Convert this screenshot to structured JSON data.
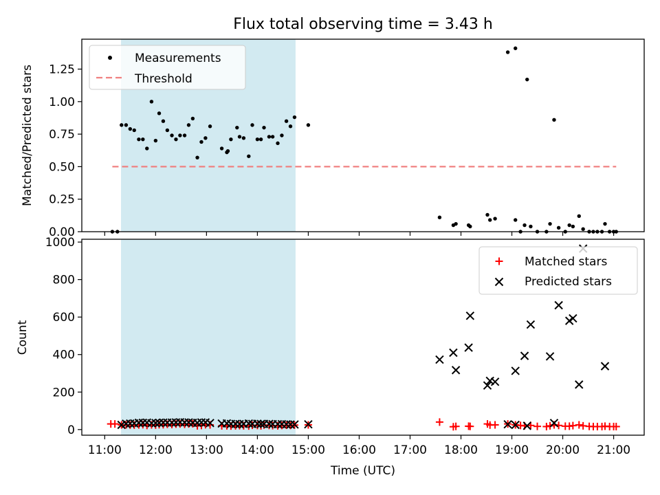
{
  "chart_data": {
    "type": "scatter",
    "title": "Flux total observing time = 3.43 h",
    "xlabel": "Time (UTC)",
    "x_unit": "hours UTC",
    "xlim": [
      10.55,
      21.6
    ],
    "x_ticks": [
      11,
      12,
      13,
      14,
      15,
      16,
      17,
      18,
      19,
      20,
      21
    ],
    "x_tick_labels": [
      "11:00",
      "12:00",
      "13:00",
      "14:00",
      "15:00",
      "16:00",
      "17:00",
      "18:00",
      "19:00",
      "20:00",
      "21:00"
    ],
    "observing_window": {
      "start": 11.32,
      "end": 14.75,
      "color": "#add8e6"
    },
    "colors": {
      "measurements": "#000000",
      "threshold": "#f08080",
      "matched": "#ff0000",
      "predicted": "#000000"
    },
    "top": {
      "ylabel": "Matched/Predicted stars",
      "ylim": [
        0,
        1.48
      ],
      "y_ticks": [
        0,
        0.25,
        0.5,
        0.75,
        1.0,
        1.25
      ],
      "y_tick_labels": [
        "0.00",
        "0.25",
        "0.50",
        "0.75",
        "1.00",
        "1.25"
      ],
      "legend": {
        "position": "upper-left",
        "measurements": "Measurements",
        "threshold": "Threshold"
      },
      "threshold": {
        "value": 0.5,
        "x_start": 11.15,
        "x_end": 21.05
      },
      "measurements": [
        [
          11.15,
          0.0
        ],
        [
          11.25,
          0.0
        ],
        [
          11.33,
          0.82
        ],
        [
          11.42,
          0.82
        ],
        [
          11.5,
          0.79
        ],
        [
          11.58,
          0.78
        ],
        [
          11.67,
          0.71
        ],
        [
          11.75,
          0.71
        ],
        [
          11.83,
          0.64
        ],
        [
          11.92,
          1.0
        ],
        [
          12.0,
          0.7
        ],
        [
          12.07,
          0.91
        ],
        [
          12.15,
          0.85
        ],
        [
          12.23,
          0.78
        ],
        [
          12.32,
          0.74
        ],
        [
          12.4,
          0.71
        ],
        [
          12.48,
          0.74
        ],
        [
          12.57,
          0.74
        ],
        [
          12.65,
          0.82
        ],
        [
          12.73,
          0.87
        ],
        [
          12.82,
          0.57
        ],
        [
          12.9,
          0.69
        ],
        [
          12.98,
          0.72
        ],
        [
          13.07,
          0.81
        ],
        [
          13.3,
          0.64
        ],
        [
          13.4,
          0.61
        ],
        [
          13.42,
          0.62
        ],
        [
          13.48,
          0.71
        ],
        [
          13.6,
          0.8
        ],
        [
          13.65,
          0.73
        ],
        [
          13.73,
          0.72
        ],
        [
          13.83,
          0.58
        ],
        [
          13.9,
          0.82
        ],
        [
          14.0,
          0.71
        ],
        [
          14.07,
          0.71
        ],
        [
          14.13,
          0.8
        ],
        [
          14.23,
          0.73
        ],
        [
          14.3,
          0.73
        ],
        [
          14.4,
          0.68
        ],
        [
          14.48,
          0.74
        ],
        [
          14.57,
          0.85
        ],
        [
          14.65,
          0.81
        ],
        [
          14.73,
          0.88
        ],
        [
          15.0,
          0.82
        ],
        [
          17.58,
          0.11
        ],
        [
          17.85,
          0.05
        ],
        [
          17.9,
          0.06
        ],
        [
          18.15,
          0.05
        ],
        [
          18.18,
          0.04
        ],
        [
          18.52,
          0.13
        ],
        [
          18.57,
          0.09
        ],
        [
          18.67,
          0.1
        ],
        [
          18.92,
          1.38
        ],
        [
          19.07,
          1.41
        ],
        [
          19.07,
          0.09
        ],
        [
          19.17,
          0.0
        ],
        [
          19.25,
          0.05
        ],
        [
          19.3,
          1.17
        ],
        [
          19.37,
          0.04
        ],
        [
          19.5,
          0.0
        ],
        [
          19.68,
          0.0
        ],
        [
          19.75,
          0.06
        ],
        [
          19.83,
          0.86
        ],
        [
          19.92,
          0.03
        ],
        [
          20.05,
          0.0
        ],
        [
          20.13,
          0.05
        ],
        [
          20.2,
          0.04
        ],
        [
          20.32,
          0.12
        ],
        [
          20.4,
          0.02
        ],
        [
          20.52,
          0.0
        ],
        [
          20.6,
          0.0
        ],
        [
          20.68,
          0.0
        ],
        [
          20.77,
          0.0
        ],
        [
          20.83,
          0.06
        ],
        [
          20.92,
          0.0
        ],
        [
          21.0,
          0.0
        ],
        [
          21.05,
          0.0
        ]
      ]
    },
    "bottom": {
      "ylabel": "Count",
      "ylim": [
        -30,
        1015
      ],
      "y_ticks": [
        0,
        200,
        400,
        600,
        800,
        1000
      ],
      "y_tick_labels": [
        "0",
        "200",
        "400",
        "600",
        "800",
        "1000"
      ],
      "legend": {
        "position": "upper-right",
        "matched": "Matched stars",
        "predicted": "Predicted stars"
      },
      "matched": [
        [
          11.12,
          30
        ],
        [
          11.2,
          30
        ],
        [
          11.33,
          25
        ],
        [
          11.42,
          25
        ],
        [
          11.5,
          24
        ],
        [
          11.58,
          24
        ],
        [
          11.67,
          25
        ],
        [
          11.75,
          26
        ],
        [
          11.83,
          22
        ],
        [
          11.92,
          25
        ],
        [
          12.0,
          24
        ],
        [
          12.07,
          26
        ],
        [
          12.15,
          26
        ],
        [
          12.23,
          28
        ],
        [
          12.32,
          27
        ],
        [
          12.4,
          29
        ],
        [
          12.48,
          30
        ],
        [
          12.57,
          28
        ],
        [
          12.65,
          30
        ],
        [
          12.73,
          31
        ],
        [
          12.82,
          20
        ],
        [
          12.9,
          22
        ],
        [
          12.98,
          26
        ],
        [
          13.07,
          25
        ],
        [
          13.3,
          20
        ],
        [
          13.4,
          20
        ],
        [
          13.48,
          19
        ],
        [
          13.57,
          20
        ],
        [
          13.65,
          21
        ],
        [
          13.73,
          20
        ],
        [
          13.83,
          19
        ],
        [
          13.9,
          23
        ],
        [
          14.0,
          22
        ],
        [
          14.07,
          20
        ],
        [
          14.13,
          24
        ],
        [
          14.23,
          22
        ],
        [
          14.3,
          21
        ],
        [
          14.4,
          20
        ],
        [
          14.48,
          22
        ],
        [
          14.57,
          23
        ],
        [
          14.65,
          22
        ],
        [
          14.73,
          24
        ],
        [
          15.0,
          25
        ],
        [
          17.58,
          40
        ],
        [
          17.85,
          15
        ],
        [
          17.9,
          17
        ],
        [
          18.15,
          18
        ],
        [
          18.18,
          17
        ],
        [
          18.52,
          30
        ],
        [
          18.57,
          24
        ],
        [
          18.67,
          25
        ],
        [
          18.92,
          30
        ],
        [
          19.07,
          25
        ],
        [
          19.17,
          22
        ],
        [
          19.25,
          20
        ],
        [
          19.37,
          22
        ],
        [
          19.5,
          17
        ],
        [
          19.68,
          16
        ],
        [
          19.75,
          20
        ],
        [
          19.83,
          25
        ],
        [
          19.92,
          22
        ],
        [
          20.05,
          18
        ],
        [
          20.13,
          18
        ],
        [
          20.2,
          21
        ],
        [
          20.32,
          25
        ],
        [
          20.4,
          20
        ],
        [
          20.52,
          17
        ],
        [
          20.6,
          16
        ],
        [
          20.68,
          16
        ],
        [
          20.77,
          16
        ],
        [
          20.83,
          18
        ],
        [
          20.92,
          16
        ],
        [
          21.0,
          16
        ],
        [
          21.05,
          16
        ]
      ],
      "predicted": [
        [
          11.33,
          25
        ],
        [
          11.42,
          31
        ],
        [
          11.5,
          32
        ],
        [
          11.58,
          33
        ],
        [
          11.67,
          36
        ],
        [
          11.75,
          36
        ],
        [
          11.83,
          37
        ],
        [
          11.92,
          34
        ],
        [
          12.0,
          35
        ],
        [
          12.07,
          36
        ],
        [
          12.15,
          37
        ],
        [
          12.23,
          37
        ],
        [
          12.32,
          37
        ],
        [
          12.4,
          38
        ],
        [
          12.48,
          39
        ],
        [
          12.57,
          38
        ],
        [
          12.65,
          38
        ],
        [
          12.73,
          36
        ],
        [
          12.82,
          36
        ],
        [
          12.9,
          38
        ],
        [
          12.98,
          38
        ],
        [
          13.07,
          35
        ],
        [
          13.3,
          32
        ],
        [
          13.4,
          33
        ],
        [
          13.48,
          30
        ],
        [
          13.57,
          30
        ],
        [
          13.65,
          29
        ],
        [
          13.73,
          30
        ],
        [
          13.83,
          32
        ],
        [
          13.9,
          30
        ],
        [
          14.0,
          31
        ],
        [
          14.07,
          30
        ],
        [
          14.13,
          30
        ],
        [
          14.23,
          30
        ],
        [
          14.3,
          29
        ],
        [
          14.4,
          29
        ],
        [
          14.48,
          29
        ],
        [
          14.57,
          28
        ],
        [
          14.65,
          27
        ],
        [
          14.73,
          27
        ],
        [
          15.0,
          28
        ],
        [
          17.58,
          373
        ],
        [
          17.85,
          410
        ],
        [
          17.9,
          317
        ],
        [
          18.15,
          437
        ],
        [
          18.18,
          607
        ],
        [
          18.52,
          235
        ],
        [
          18.57,
          260
        ],
        [
          18.67,
          255
        ],
        [
          18.92,
          28
        ],
        [
          19.07,
          313
        ],
        [
          19.07,
          25
        ],
        [
          19.25,
          393
        ],
        [
          19.3,
          20
        ],
        [
          19.37,
          560
        ],
        [
          19.75,
          390
        ],
        [
          19.83,
          35
        ],
        [
          19.92,
          663
        ],
        [
          20.13,
          580
        ],
        [
          20.2,
          593
        ],
        [
          20.32,
          240
        ],
        [
          20.4,
          965
        ],
        [
          20.83,
          338
        ]
      ]
    }
  }
}
